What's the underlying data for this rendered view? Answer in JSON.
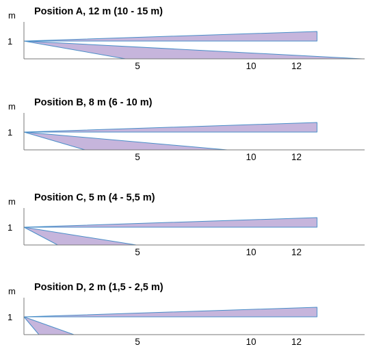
{
  "colors": {
    "fill": "#c6b5dc",
    "stroke": "#4a8ec8",
    "axis": "#777777",
    "text": "#000000"
  },
  "axis_unit": "m",
  "y_tick": "1",
  "x_ticks": [
    "5",
    "10",
    "12"
  ],
  "panels": [
    {
      "title": "Position A, 12 m (10 - 15 m)",
      "lower_beam_end_m": 14.9
    },
    {
      "title": "Position B, 8 m (6 - 10 m)",
      "lower_beam_end_m": 8.95
    },
    {
      "title": "Position C, 5 m (4 - 5,5 m)",
      "lower_beam_end_m": 4.95
    },
    {
      "title": "Position D, 2 m (1,5 - 2,5 m)",
      "lower_beam_end_m": 2.2
    }
  ]
}
